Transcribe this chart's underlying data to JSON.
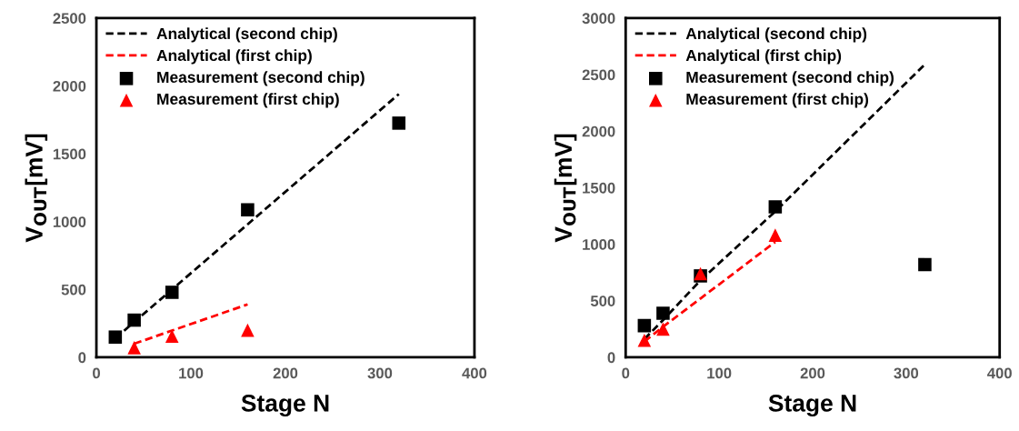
{
  "chart_data": [
    {
      "type": "scatter",
      "xlabel": "Stage N",
      "ylabel": "V$_{OUT}$[mV]",
      "xlim": [
        0,
        400
      ],
      "xticks": [
        0,
        100,
        200,
        300,
        400
      ],
      "ylim": [
        0,
        2500
      ],
      "yticks": [
        0,
        500,
        1000,
        1500,
        2000,
        2500
      ],
      "legend": "top left",
      "series": [
        {
          "name": "Analytical (second chip)",
          "type": "line",
          "line_style": "dashed",
          "color": "#000000",
          "x": [
            20,
            40,
            80,
            160,
            320
          ],
          "values": [
            140,
            260,
            500,
            980,
            1940
          ]
        },
        {
          "name": "Analytical (first chip)",
          "type": "line",
          "line_style": "dashed",
          "color": "#ff0000",
          "x": [
            40,
            80,
            160
          ],
          "values": [
            100,
            197,
            390
          ]
        },
        {
          "name": "Measurement (second chip)",
          "type": "scatter",
          "marker": "square",
          "color": "#000000",
          "x": [
            20,
            40,
            80,
            160,
            320
          ],
          "values": [
            149,
            274,
            479,
            1087,
            1726
          ]
        },
        {
          "name": "Measurement (first chip)",
          "type": "scatter",
          "marker": "triangle",
          "color": "#ff0000",
          "x": [
            40,
            80,
            160
          ],
          "values": [
            71,
            156,
            200
          ]
        }
      ]
    },
    {
      "type": "scatter",
      "xlabel": "Stage N",
      "ylabel": "V$_{OUT}$[mV]",
      "xlim": [
        0,
        400
      ],
      "xticks": [
        0,
        100,
        200,
        300,
        400
      ],
      "ylim": [
        0,
        3000
      ],
      "yticks": [
        0,
        500,
        1000,
        1500,
        2000,
        2500,
        3000
      ],
      "legend": "top left",
      "series": [
        {
          "name": "Analytical (second chip)",
          "type": "line",
          "line_style": "dashed",
          "color": "#000000",
          "x": [
            20,
            40,
            80,
            160,
            320
          ],
          "values": [
            160,
            330,
            680,
            1290,
            2590
          ]
        },
        {
          "name": "Analytical (first chip)",
          "type": "line",
          "line_style": "dashed",
          "color": "#ff0000",
          "x": [
            20,
            40,
            80,
            160
          ],
          "values": [
            140,
            270,
            520,
            1020
          ]
        },
        {
          "name": "Measurement (second chip)",
          "type": "scatter",
          "marker": "square",
          "color": "#000000",
          "x": [
            20,
            40,
            80,
            160,
            320
          ],
          "values": [
            280,
            390,
            720,
            1330,
            820
          ]
        },
        {
          "name": "Measurement (first chip)",
          "type": "scatter",
          "marker": "triangle",
          "color": "#ff0000",
          "x": [
            20,
            40,
            80,
            160
          ],
          "values": [
            150,
            250,
            740,
            1080
          ]
        }
      ]
    }
  ]
}
